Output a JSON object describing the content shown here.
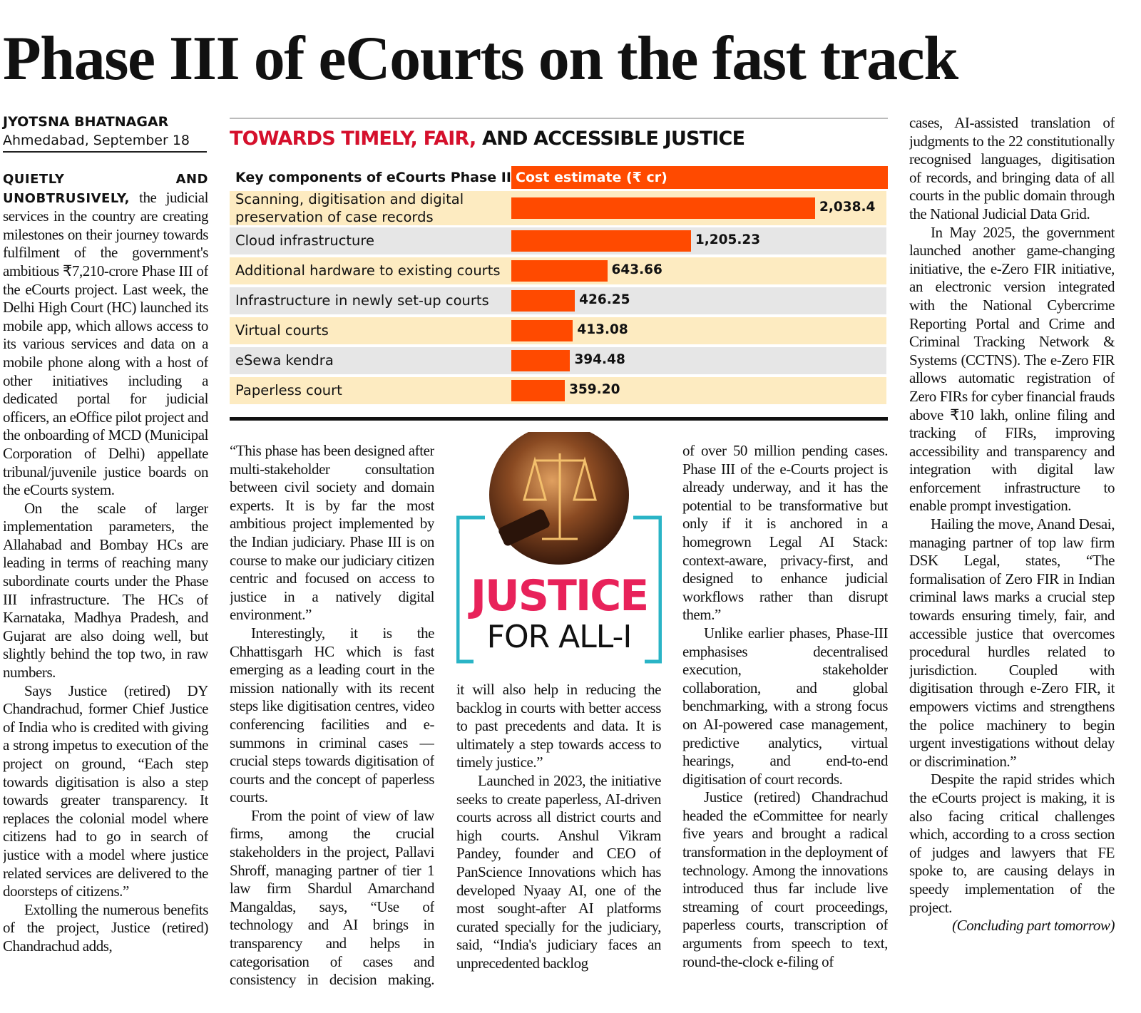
{
  "headline": "Phase III of eCourts on the fast track",
  "byline": {
    "author": "JYOTSNA BHATNAGAR",
    "dateline": "Ahmedabad, September 18"
  },
  "chart_data": {
    "type": "bar",
    "orientation": "horizontal",
    "title_parts": [
      "TOWARDS TIMELY, FAIR,",
      "AND ACCESSIBLE JUSTICE"
    ],
    "title_colors": [
      "#d5102c",
      "#111111"
    ],
    "category_header": "Key components of eCourts Phase III",
    "value_header": "Cost estimate (₹ cr)",
    "categories": [
      "Scanning, digitisation and digital preservation of case records",
      "Cloud infrastructure",
      "Additional hardware to existing courts",
      "Infrastructure in newly set-up courts",
      "Virtual courts",
      "eSewa kendra",
      "Paperless court"
    ],
    "values": [
      2038.4,
      1205.23,
      643.66,
      426.25,
      413.08,
      394.48,
      359.2
    ],
    "value_labels": [
      "2,038.4",
      "1,205.23",
      "643.66",
      "426.25",
      "413.08",
      "394.48",
      "359.20"
    ],
    "color": "#ff4a00",
    "row_colors": [
      "#fdebc1",
      "#e6e6e6"
    ]
  },
  "graphic": {
    "title": "JUSTICE",
    "subtitle": "FOR ALL-I"
  },
  "columns": [
    {
      "lead": "QUIETLY AND UNOBTRUSIVELY,",
      "paragraphs": [
        "the judicial services in the country are creating milestones on their journey towards fulfilment of the government's ambitious ₹7,210-crore Phase III of the eCourts project. Last week, the Delhi High Court (HC) launched its mobile app, which allows access to its various services and data on a mobile phone along with a host of other initiatives including a dedicated portal for judicial officers, an eOffice pilot project and the onboarding of MCD (Municipal Corporation of Delhi) appellate tribunal/juvenile justice boards on the eCourts system.",
        "On the scale of larger implementation parameters, the Allahabad and Bombay HCs are leading in terms of reaching many subordinate courts under the Phase III infrastructure. The HCs of Karnataka, Madhya Pradesh, and Gujarat are also doing well, but slightly behind the top two, in raw numbers.",
        "Says Justice (retired) DY Chandrachud, former Chief Justice of India who is credited with giving a strong impetus to execution of the project on ground, “Each step towards digitisation is also a step towards greater transparency. It replaces the colonial model where citizens had to go in search of justice with a model where justice related services are delivered to the doorsteps of citizens.”",
        "Extolling the numerous benefits of the project, Justice (retired) Chandrachud adds,"
      ]
    },
    {
      "paragraphs": [
        "“This phase has been designed after multi-stakeholder consultation between civil society and domain experts. It is by far the most ambitious project implemented by the Indian judiciary. Phase III is on course to make our judiciary citizen centric and focused on access to justice in a natively digital environment.”",
        "Interestingly, it is the Chhattisgarh HC which is fast emerging as a leading court in the mission nationally with its recent steps like digitisation centres, video conferencing facilities and e-summons in criminal cases — crucial steps towards digitisation of courts and the concept of paperless courts.",
        "From the point of view of law firms, among the crucial stakeholders in the project, Pallavi Shroff, managing partner of tier 1 law firm Shardul Amarchand Mangaldas, says, “Use of technology and AI brings in transparency and helps in categorisation of cases and consistency in decision making. Furthermore,"
      ]
    },
    {
      "paragraphs": [
        "it will also help in reducing the backlog in courts with better access to past precedents and data. It is ultimately a step towards access to timely justice.”",
        "Launched in 2023, the initiative seeks to create paperless, AI-driven courts across all district courts and high courts. Anshul Vikram Pandey, founder and CEO of PanScience Innovations which has developed Nyaay AI, one of the most sought-after AI platforms curated specially for the judiciary, said, “India's judiciary faces an unprecedented backlog"
      ]
    },
    {
      "paragraphs": [
        "of over 50 million pending cases. Phase III of the e-Courts project is already underway, and it has the potential to be transformative but only if it is anchored in a homegrown Legal AI Stack: context-aware, privacy-first, and designed to enhance judicial workflows rather than disrupt them.”",
        "Unlike earlier phases, Phase-III emphasises decentralised execution, stakeholder collaboration, and global benchmarking, with a strong focus on AI-powered case management, predictive analytics, virtual hearings, and end-to-end digitisation of court records.",
        "Justice (retired) Chandrachud headed the eCommittee for nearly five years and brought a radical transformation in the deployment of technology. Among the innovations introduced thus far include live streaming of court proceedings, paperless courts, transcription of arguments from speech to text, round-the-clock e-filing of"
      ]
    },
    {
      "paragraphs": [
        "cases, AI-assisted translation of judgments to the 22 constitutionally recognised languages, digitisation of records, and bringing data of all courts in the public domain through the National Judicial Data Grid.",
        "In May 2025, the government launched another game-changing initiative, the e-Zero FIR initiative, an electronic version integrated with the National Cybercrime Reporting Portal and Crime and Criminal Tracking Network & Systems (CCTNS). The e-Zero FIR allows automatic registration of Zero FIRs for cyber financial frauds above ₹10 lakh, online filing and tracking of FIRs, improving accessibility and transparency and integration with digital law enforcement infrastructure to enable prompt investigation.",
        "Hailing the move, Anand Desai, managing partner of top law firm DSK Legal, states, “The formalisation of Zero FIR in Indian criminal laws marks a crucial step towards ensuring timely, fair, and accessible justice that overcomes procedural hurdles related to jurisdiction. Coupled with digitisation through e-Zero FIR, it empowers victims and strengthens the police machinery to begin urgent investigations without delay or discrimination.”",
        "Despite the rapid strides which the eCourts project is making, it is also facing critical challenges which, according to a cross section of judges and lawyers that FE spoke to, are causing delays in speedy implementation of the project."
      ],
      "closing": "(Concluding part tomorrow)"
    }
  ]
}
